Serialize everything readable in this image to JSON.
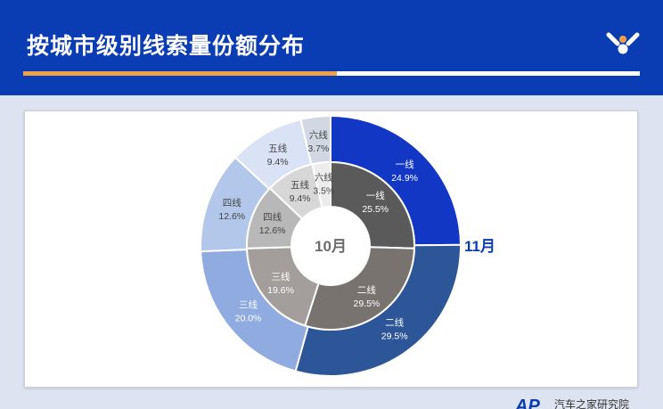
{
  "header": {
    "title": "按城市级别线索量份额分布"
  },
  "footer": {
    "brand_mark": "AP",
    "brand_text": "汽车之家研究院"
  },
  "colors": {
    "header_bg": "#0a3cb4",
    "accent_orange": "#f0a046",
    "outer_ring": [
      "#1237c4",
      "#2c5697",
      "#8fabe0",
      "#b3c7ea",
      "#dae3f5",
      "#d1d8e4"
    ],
    "inner_ring": [
      "#5a5a5a",
      "#797370",
      "#a39e9b",
      "#b8b8b8",
      "#d7d7d7",
      "#ececec"
    ]
  },
  "chart_data": {
    "type": "pie",
    "subtype": "nested-donut",
    "categories": [
      "一线",
      "二线",
      "三线",
      "四线",
      "五线",
      "六线"
    ],
    "series": [
      {
        "name": "11月",
        "ring": "outer",
        "values": [
          24.9,
          29.5,
          20.0,
          12.6,
          9.4,
          3.7
        ],
        "labels": [
          "24.9%",
          "29.5%",
          "20.0%",
          "12.6%",
          "9.4%",
          "3.7%"
        ]
      },
      {
        "name": "10月",
        "ring": "inner",
        "values": [
          25.5,
          29.5,
          19.6,
          12.6,
          9.4,
          3.5
        ],
        "labels": [
          "25.5%",
          "29.5%",
          "19.6%",
          "12.6%",
          "9.4%",
          "3.5%"
        ]
      }
    ]
  }
}
